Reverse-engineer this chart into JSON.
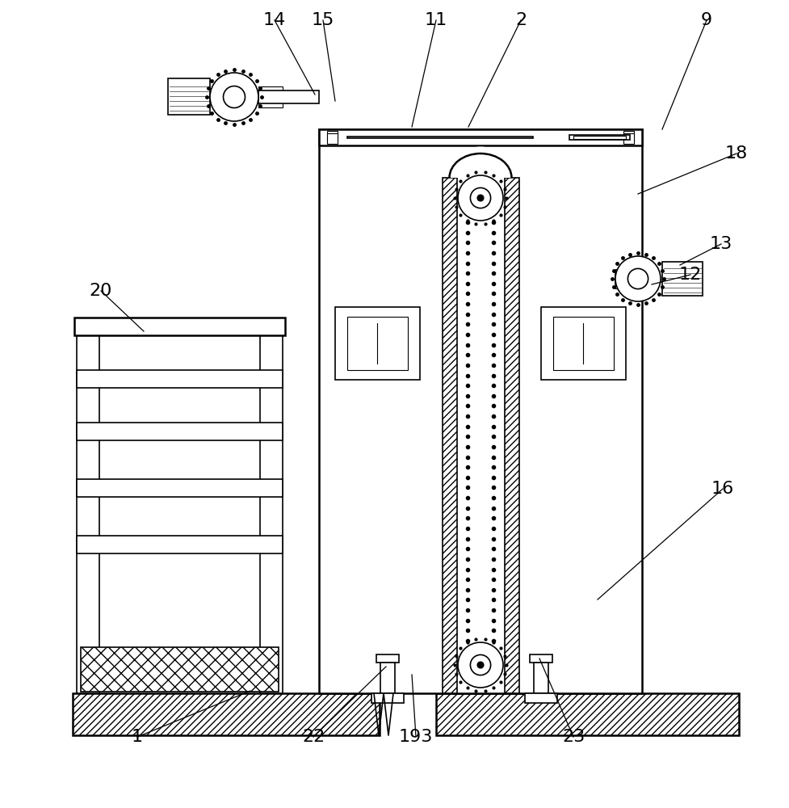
{
  "bg_color": "#ffffff",
  "fig_width": 9.78,
  "fig_height": 10.0,
  "dpi": 100,
  "lw": 1.2,
  "lw_thick": 1.8
}
